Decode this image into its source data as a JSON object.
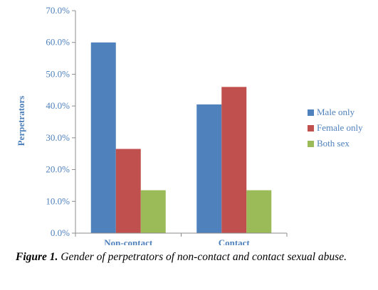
{
  "chart_data": {
    "type": "bar",
    "categories": [
      "Non-contact",
      "Contact"
    ],
    "series": [
      {
        "name": "Male only",
        "values": [
          60.0,
          40.5
        ],
        "color": "#4f81bd"
      },
      {
        "name": "Female only",
        "values": [
          26.5,
          46.0
        ],
        "color": "#c0504d"
      },
      {
        "name": "Both sex",
        "values": [
          13.5,
          13.5
        ],
        "color": "#9bbb59"
      }
    ],
    "xlabel": "",
    "ylabel": "Perpetrators",
    "ylim": [
      0,
      70
    ],
    "yticks": [
      "0.0%",
      "10.0%",
      "20.0%",
      "30.0%",
      "40.0%",
      "50.0%",
      "60.0%",
      "70.0%"
    ],
    "grid": false,
    "legend": "right"
  },
  "caption": {
    "label": "Figure 1.",
    "text": "Gender of perpetrators of non-contact and contact sexual abuse."
  }
}
